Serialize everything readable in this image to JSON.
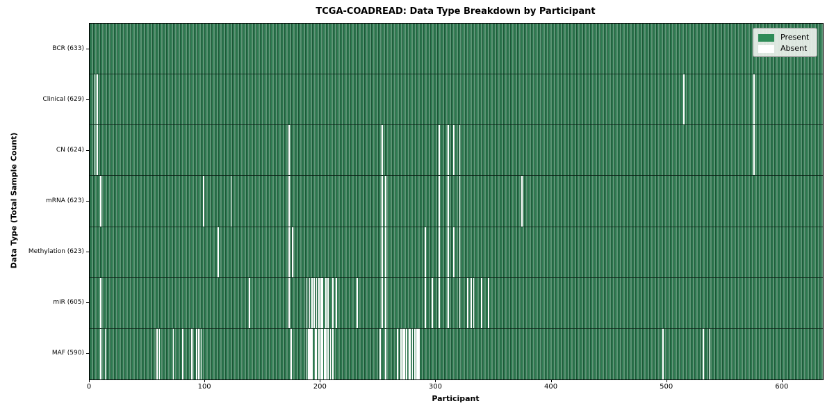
{
  "title": "TCGA-COADREAD: Data Type Breakdown by Participant",
  "xlabel": "Participant",
  "ylabel": "Data Type (Total Sample Count)",
  "legend": {
    "present_label": "Present",
    "absent_label": "Absent"
  },
  "colors": {
    "present": "#2e8b57",
    "absent": "#ffffff",
    "legend_background": "#ebf0eb"
  },
  "chart_data": {
    "type": "heatmap",
    "title": "TCGA-COADREAD: Data Type Breakdown by Participant",
    "xlabel": "Participant",
    "ylabel": "Data Type (Total Sample Count)",
    "legend_entries": [
      "Present",
      "Absent"
    ],
    "legend_position": "upper right",
    "grid": false,
    "n_participants": 633,
    "x_axis_max": 635,
    "x_ticks": [
      0,
      100,
      200,
      300,
      400,
      500,
      600
    ],
    "rows": [
      {
        "name": "BCR",
        "label": "BCR (633)",
        "total": 633,
        "absent": []
      },
      {
        "name": "Clinical",
        "label": "Clinical (629)",
        "total": 629,
        "absent": [
          4,
          6,
          514,
          575
        ]
      },
      {
        "name": "CN",
        "label": "CN (624)",
        "total": 624,
        "absent": [
          4,
          6,
          172,
          253,
          302,
          310,
          315,
          320,
          575
        ]
      },
      {
        "name": "mRNA",
        "label": "mRNA (623)",
        "total": 623,
        "absent": [
          9,
          98,
          122,
          172,
          253,
          256,
          302,
          310,
          320,
          374
        ]
      },
      {
        "name": "Methylation",
        "label": "Methylation (623)",
        "total": 623,
        "absent": [
          111,
          172,
          175,
          253,
          256,
          290,
          302,
          310,
          315,
          320
        ]
      },
      {
        "name": "miR",
        "label": "miR (605)",
        "total": 605,
        "absent": [
          9,
          138,
          172,
          187,
          190,
          192,
          194,
          196,
          198,
          200,
          201,
          204,
          206,
          210,
          213,
          231,
          253,
          256,
          290,
          296,
          302,
          310,
          320,
          327,
          330,
          332,
          339,
          345
        ]
      },
      {
        "name": "MAF",
        "label": "MAF (590)",
        "total": 590,
        "absent": [
          9,
          13,
          58,
          60,
          72,
          80,
          88,
          92,
          94,
          96,
          174,
          187,
          189,
          190,
          191,
          192,
          195,
          196,
          198,
          200,
          201,
          203,
          204,
          206,
          208,
          210,
          251,
          256,
          266,
          269,
          271,
          272,
          274,
          276,
          277,
          279,
          281,
          283,
          284,
          285,
          496,
          531,
          536
        ]
      }
    ]
  }
}
